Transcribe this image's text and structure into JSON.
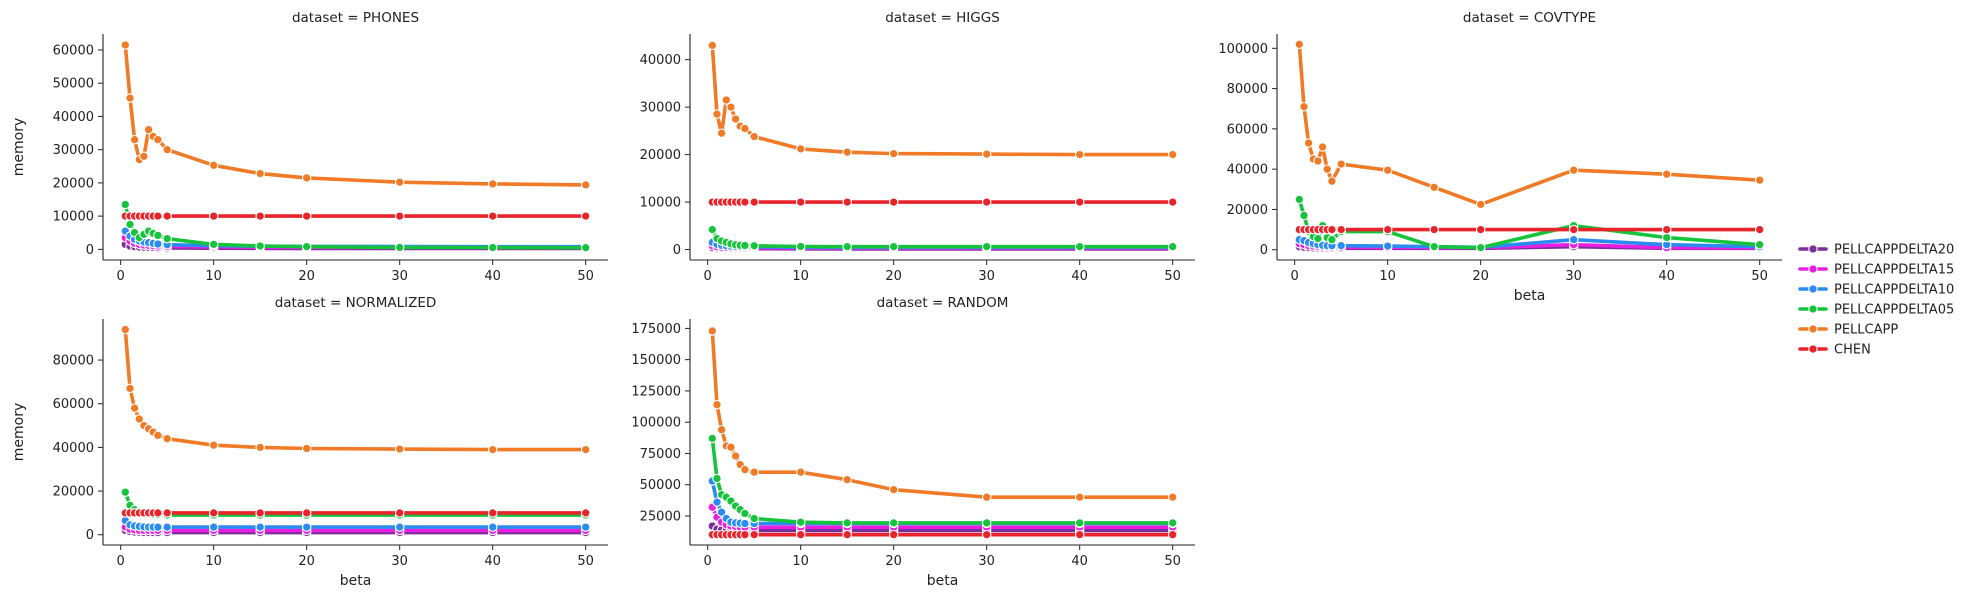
{
  "legend": {
    "placement": "right",
    "entries": [
      {
        "name": "PELLCAPPDELTA20",
        "color": "#7b2d9a"
      },
      {
        "name": "PELLCAPPDELTA15",
        "color": "#e81ee0"
      },
      {
        "name": "PELLCAPPDELTA10",
        "color": "#2a8cf0"
      },
      {
        "name": "PELLCAPPDELTA05",
        "color": "#16c43c"
      },
      {
        "name": "PELLCAPP",
        "color": "#f07a26"
      },
      {
        "name": "CHEN",
        "color": "#e8242a"
      }
    ]
  },
  "chart_data": [
    {
      "type": "line",
      "title": "dataset = PHONES",
      "xlabel": "",
      "ylabel": "memory",
      "xlim": [
        -1.9,
        52.4
      ],
      "ylim": [
        -3200,
        64800
      ],
      "xticks": [
        0,
        10,
        20,
        30,
        40,
        50
      ],
      "yticks": [
        0,
        10000,
        20000,
        30000,
        40000,
        50000,
        60000
      ],
      "ytick_labels": [
        "0",
        "10000",
        "20000",
        "30000",
        "40000",
        "50000",
        "60000"
      ],
      "grid": false,
      "x": [
        0.5,
        1.0,
        1.5,
        2.0,
        2.5,
        3.0,
        3.5,
        4.0,
        5.0,
        10.0,
        15.0,
        20.0,
        30.0,
        40.0,
        50.0
      ],
      "series": [
        {
          "name": "PELLCAPPDELTA20",
          "values": [
            1500,
            1000,
            800,
            700,
            650,
            600,
            550,
            500,
            450,
            350,
            300,
            300,
            300,
            300,
            300
          ]
        },
        {
          "name": "PELLCAPPDELTA15",
          "values": [
            3500,
            2500,
            1800,
            1500,
            1300,
            1200,
            1100,
            1000,
            900,
            700,
            600,
            600,
            600,
            600,
            600
          ]
        },
        {
          "name": "PELLCAPPDELTA10",
          "values": [
            5500,
            4000,
            3000,
            2500,
            2200,
            2000,
            1800,
            1600,
            1400,
            1100,
            950,
            900,
            850,
            800,
            800
          ]
        },
        {
          "name": "PELLCAPPDELTA05",
          "values": [
            13500,
            7500,
            5000,
            3500,
            4500,
            5500,
            4800,
            4200,
            3200,
            1500,
            1000,
            800,
            600,
            550,
            500
          ]
        },
        {
          "name": "PELLCAPP",
          "values": [
            61500,
            45500,
            33000,
            27000,
            28000,
            36000,
            34000,
            33000,
            30000,
            25300,
            22800,
            21500,
            20200,
            19700,
            19400
          ]
        },
        {
          "name": "CHEN",
          "values": [
            10000,
            10000,
            10000,
            10000,
            10000,
            10000,
            10000,
            10000,
            10000,
            10000,
            10000,
            10000,
            10000,
            10000,
            10000
          ]
        }
      ]
    },
    {
      "type": "line",
      "title": "dataset = HIGGS",
      "xlabel": "",
      "ylabel": "",
      "xlim": [
        -1.9,
        52.4
      ],
      "ylim": [
        -2200,
        45400
      ],
      "xticks": [
        0,
        10,
        20,
        30,
        40,
        50
      ],
      "yticks": [
        0,
        10000,
        20000,
        30000,
        40000
      ],
      "ytick_labels": [
        "0",
        "10000",
        "20000",
        "30000",
        "40000"
      ],
      "grid": false,
      "x": [
        0.5,
        1.0,
        1.5,
        2.0,
        2.5,
        3.0,
        3.5,
        4.0,
        5.0,
        10.0,
        15.0,
        20.0,
        30.0,
        40.0,
        50.0
      ],
      "series": [
        {
          "name": "PELLCAPPDELTA20",
          "values": [
            400,
            300,
            250,
            220,
            200,
            200,
            190,
            180,
            170,
            150,
            140,
            140,
            140,
            140,
            140
          ]
        },
        {
          "name": "PELLCAPPDELTA15",
          "values": [
            800,
            600,
            500,
            450,
            400,
            380,
            360,
            340,
            320,
            280,
            270,
            270,
            270,
            270,
            270
          ]
        },
        {
          "name": "PELLCAPPDELTA10",
          "values": [
            1500,
            1100,
            900,
            800,
            700,
            650,
            600,
            580,
            550,
            480,
            450,
            450,
            450,
            450,
            450
          ]
        },
        {
          "name": "PELLCAPPDELTA05",
          "values": [
            4200,
            2300,
            1800,
            1500,
            1200,
            1000,
            900,
            850,
            800,
            650,
            600,
            600,
            600,
            600,
            600
          ]
        },
        {
          "name": "PELLCAPP",
          "values": [
            43000,
            28500,
            24500,
            31500,
            30000,
            27500,
            26000,
            25500,
            23800,
            21200,
            20500,
            20200,
            20100,
            20000,
            20000
          ]
        },
        {
          "name": "CHEN",
          "values": [
            10000,
            10000,
            10000,
            10000,
            10000,
            10000,
            10000,
            10000,
            10000,
            10000,
            10000,
            10000,
            10000,
            10000,
            10000
          ]
        }
      ]
    },
    {
      "type": "line",
      "title": "dataset = COVTYPE",
      "xlabel": "beta",
      "ylabel": "",
      "xlim": [
        -1.9,
        52.4
      ],
      "ylim": [
        -5100,
        107100
      ],
      "xticks": [
        0,
        10,
        20,
        30,
        40,
        50
      ],
      "yticks": [
        0,
        20000,
        40000,
        60000,
        80000,
        100000
      ],
      "ytick_labels": [
        "0",
        "20000",
        "40000",
        "60000",
        "80000",
        "100000"
      ],
      "grid": false,
      "x": [
        0.5,
        1.0,
        1.5,
        2.0,
        2.5,
        3.0,
        3.5,
        4.0,
        5.0,
        10.0,
        15.0,
        20.0,
        30.0,
        40.0,
        50.0
      ],
      "series": [
        {
          "name": "PELLCAPPDELTA20",
          "values": [
            1500,
            1200,
            1000,
            900,
            800,
            750,
            700,
            700,
            700,
            700,
            700,
            700,
            1500,
            700,
            700
          ]
        },
        {
          "name": "PELLCAPPDELTA15",
          "values": [
            3000,
            2500,
            2000,
            1800,
            1600,
            1500,
            1400,
            1300,
            1200,
            1100,
            1000,
            1000,
            2500,
            1000,
            900
          ]
        },
        {
          "name": "PELLCAPPDELTA10",
          "values": [
            5000,
            4500,
            3500,
            3000,
            2500,
            2200,
            2000,
            2000,
            2000,
            1800,
            1500,
            1200,
            5000,
            2500,
            1500
          ]
        },
        {
          "name": "PELLCAPPDELTA05",
          "values": [
            25000,
            17000,
            9000,
            6500,
            5500,
            12000,
            6000,
            5000,
            9000,
            9000,
            1500,
            1000,
            12000,
            6000,
            2500
          ]
        },
        {
          "name": "PELLCAPP",
          "values": [
            102000,
            71000,
            53000,
            45000,
            44000,
            51000,
            40000,
            34000,
            42500,
            39500,
            31000,
            22500,
            39500,
            37500,
            34500
          ]
        },
        {
          "name": "CHEN",
          "values": [
            10000,
            10000,
            10000,
            10000,
            10000,
            10000,
            10000,
            10000,
            10000,
            10000,
            10000,
            10000,
            10000,
            10000,
            10000
          ]
        }
      ]
    },
    {
      "type": "line",
      "title": "dataset = NORMALIZED",
      "xlabel": "beta",
      "ylabel": "memory",
      "xlim": [
        -1.9,
        52.4
      ],
      "ylim": [
        -4700,
        98800
      ],
      "xticks": [
        0,
        10,
        20,
        30,
        40,
        50
      ],
      "yticks": [
        0,
        20000,
        40000,
        60000,
        80000
      ],
      "ytick_labels": [
        "0",
        "20000",
        "40000",
        "60000",
        "80000"
      ],
      "grid": false,
      "x": [
        0.5,
        1.0,
        1.5,
        2.0,
        2.5,
        3.0,
        3.5,
        4.0,
        5.0,
        10.0,
        15.0,
        20.0,
        30.0,
        40.0,
        50.0
      ],
      "series": [
        {
          "name": "PELLCAPPDELTA20",
          "values": [
            2000,
            1500,
            1200,
            1100,
            1000,
            1000,
            1000,
            1000,
            1000,
            1000,
            1000,
            1000,
            1000,
            1000,
            1000
          ]
        },
        {
          "name": "PELLCAPPDELTA15",
          "values": [
            3500,
            2500,
            2200,
            2000,
            2000,
            2000,
            2000,
            2000,
            2000,
            2000,
            2000,
            2000,
            2000,
            2000,
            2000
          ]
        },
        {
          "name": "PELLCAPPDELTA10",
          "values": [
            6500,
            4500,
            4000,
            3800,
            3600,
            3500,
            3500,
            3500,
            3500,
            3500,
            3500,
            3500,
            3500,
            3500,
            3500
          ]
        },
        {
          "name": "PELLCAPPDELTA05",
          "values": [
            19500,
            13500,
            11500,
            10500,
            10000,
            9500,
            9300,
            9200,
            9000,
            9000,
            9000,
            9000,
            9000,
            9000,
            9000
          ]
        },
        {
          "name": "PELLCAPP",
          "values": [
            94000,
            67000,
            58000,
            53000,
            50000,
            48500,
            47000,
            45500,
            44000,
            41000,
            40000,
            39500,
            39200,
            39000,
            39000
          ]
        },
        {
          "name": "CHEN",
          "values": [
            10000,
            10000,
            10000,
            10000,
            10000,
            10000,
            10000,
            10000,
            10000,
            10000,
            10000,
            10000,
            10000,
            10000,
            10000
          ]
        }
      ]
    },
    {
      "type": "line",
      "title": "dataset = RANDOM",
      "xlabel": "beta",
      "ylabel": "",
      "xlim": [
        -1.9,
        52.4
      ],
      "ylim": [
        1800,
        182500
      ],
      "xticks": [
        0,
        10,
        20,
        30,
        40,
        50
      ],
      "yticks": [
        25000,
        50000,
        75000,
        100000,
        125000,
        150000,
        175000
      ],
      "ytick_labels": [
        "25000",
        "50000",
        "75000",
        "100000",
        "125000",
        "150000",
        "175000"
      ],
      "grid": false,
      "x": [
        0.5,
        1.0,
        1.5,
        2.0,
        2.5,
        3.0,
        3.5,
        4.0,
        5.0,
        10.0,
        15.0,
        20.0,
        30.0,
        40.0,
        50.0
      ],
      "series": [
        {
          "name": "PELLCAPPDELTA20",
          "values": [
            17000,
            14500,
            14000,
            13800,
            13700,
            13600,
            13500,
            13500,
            13500,
            13500,
            13500,
            13500,
            13500,
            13500,
            13500
          ]
        },
        {
          "name": "PELLCAPPDELTA15",
          "values": [
            32000,
            24000,
            20000,
            18000,
            17000,
            16500,
            16000,
            16000,
            16000,
            16000,
            16000,
            16000,
            16000,
            16000,
            16000
          ]
        },
        {
          "name": "PELLCAPPDELTA10",
          "values": [
            53000,
            36000,
            28000,
            23000,
            20000,
            19500,
            19200,
            19000,
            19000,
            19000,
            19000,
            19000,
            19000,
            19000,
            19000
          ]
        },
        {
          "name": "PELLCAPPDELTA05",
          "values": [
            87000,
            55000,
            42000,
            40000,
            37000,
            33000,
            30000,
            27000,
            23000,
            20000,
            19500,
            19500,
            19500,
            19500,
            19500
          ]
        },
        {
          "name": "PELLCAPP",
          "values": [
            173000,
            114000,
            94000,
            81000,
            80000,
            73000,
            66000,
            62000,
            60000,
            60000,
            54000,
            46000,
            40000,
            40000,
            40000
          ]
        },
        {
          "name": "CHEN",
          "values": [
            10000,
            10000,
            10000,
            10000,
            10000,
            10000,
            10000,
            10000,
            10000,
            10000,
            10000,
            10000,
            10000,
            10000,
            10000
          ]
        }
      ]
    }
  ]
}
